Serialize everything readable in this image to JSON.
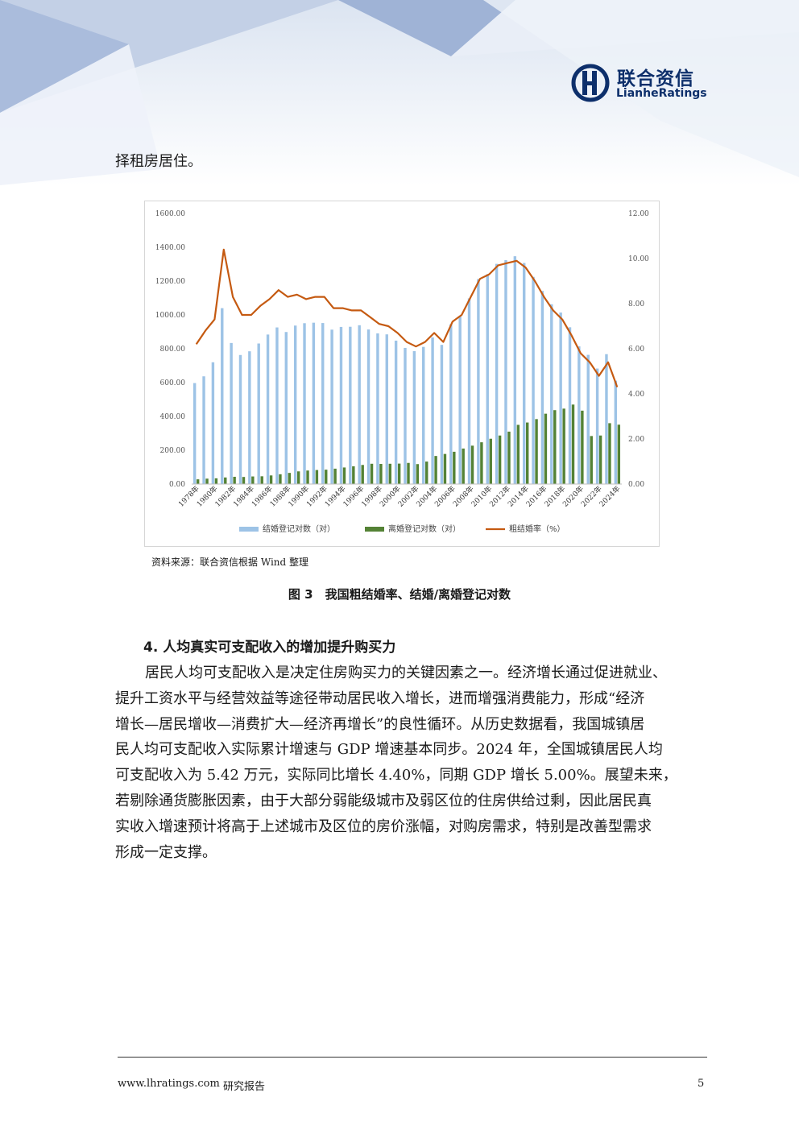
{
  "header": {
    "logo_cn": "联合资信",
    "logo_en": "LianheRatings",
    "colors": {
      "navy": "#0d2f6b",
      "light_blue": "#c9d6ea",
      "pale_blue": "#e4ebf5"
    }
  },
  "lead_text": "择租房居住。",
  "figure": {
    "source": "资料来源：联合资信根据 Wind 整理",
    "caption": "图 3　我国粗结婚率、结婚/离婚登记对数"
  },
  "chart_data": {
    "type": "bar",
    "categories": [
      "1978年",
      "1979年",
      "1980年",
      "1981年",
      "1982年",
      "1983年",
      "1984年",
      "1985年",
      "1986年",
      "1987年",
      "1988年",
      "1989年",
      "1990年",
      "1991年",
      "1992年",
      "1993年",
      "1994年",
      "1995年",
      "1996年",
      "1997年",
      "1998年",
      "1999年",
      "2000年",
      "2001年",
      "2002年",
      "2003年",
      "2004年",
      "2005年",
      "2006年",
      "2007年",
      "2008年",
      "2009年",
      "2010年",
      "2011年",
      "2012年",
      "2013年",
      "2014年",
      "2015年",
      "2016年",
      "2017年",
      "2018年",
      "2019年",
      "2020年",
      "2021年",
      "2022年",
      "2023年",
      "2024年"
    ],
    "tick_labels_shown": [
      "1978年",
      "1980年",
      "1982年",
      "1984年",
      "1986年",
      "1988年",
      "1990年",
      "1992年",
      "1994年",
      "1996年",
      "1998年",
      "2000年",
      "2002年",
      "2004年",
      "2006年",
      "2008年",
      "2010年",
      "2012年",
      "2014年",
      "2016年",
      "2018年",
      "2020年",
      "2022年",
      "2024年"
    ],
    "series": [
      {
        "name": "结婚登记对数（对）",
        "axis": "left",
        "kind": "bar",
        "color": "#9dc3e6",
        "values": [
          597,
          637,
          720,
          1040,
          834,
          763,
          785,
          831,
          884,
          926,
          899,
          937,
          951,
          954,
          952,
          913,
          929,
          930,
          939,
          914,
          891,
          885,
          848,
          805,
          786,
          811,
          867,
          823,
          945,
          991,
          1098,
          1212,
          1241,
          1302,
          1324,
          1347,
          1307,
          1225,
          1142,
          1063,
          1014,
          927,
          814,
          764,
          683,
          768,
          611
        ]
      },
      {
        "name": "离婚登记对数（对）",
        "axis": "left",
        "kind": "bar",
        "color": "#548235",
        "values": [
          28,
          32,
          34,
          39,
          43,
          42,
          45,
          46,
          51,
          58,
          66,
          75,
          80,
          83,
          85,
          91,
          98,
          105,
          113,
          120,
          119,
          120,
          121,
          125,
          118,
          133,
          166,
          178,
          191,
          210,
          227,
          247,
          268,
          287,
          310,
          350,
          364,
          384,
          416,
          437,
          446,
          470,
          434,
          284,
          287,
          360,
          351
        ]
      },
      {
        "name": "粗结婚率（%）",
        "axis": "right",
        "kind": "line",
        "color": "#c55a11",
        "values": [
          6.2,
          6.8,
          7.3,
          10.4,
          8.3,
          7.5,
          7.5,
          7.9,
          8.2,
          8.6,
          8.3,
          8.4,
          8.2,
          8.3,
          8.3,
          7.8,
          7.8,
          7.7,
          7.7,
          7.4,
          7.1,
          7.0,
          6.7,
          6.3,
          6.1,
          6.3,
          6.7,
          6.3,
          7.2,
          7.5,
          8.3,
          9.1,
          9.3,
          9.7,
          9.8,
          9.9,
          9.6,
          9.0,
          8.3,
          7.7,
          7.3,
          6.6,
          5.8,
          5.4,
          4.8,
          5.4,
          4.3
        ]
      }
    ],
    "left_axis": {
      "ylim": [
        0,
        1600
      ],
      "ticks": [
        "0.00",
        "200.00",
        "400.00",
        "600.00",
        "800.00",
        "1000.00",
        "1200.00",
        "1400.00",
        "1600.00"
      ]
    },
    "right_axis": {
      "ylim": [
        0,
        12
      ],
      "ticks": [
        "0.00",
        "2.00",
        "4.00",
        "6.00",
        "8.00",
        "10.00",
        "12.00"
      ]
    },
    "grid": false,
    "legend_position": "bottom"
  },
  "section": {
    "heading": "4. 人均真实可支配收入的增加提升购买力",
    "paragraph_lines": [
      "居民人均可支配收入是决定住房购买力的关键因素之一。经济增长通过促进就业、",
      "提升工资水平与经营效益等途径带动居民收入增长，进而增强消费能力，形成“经济",
      "增长—居民增收—消费扩大—经济再增长”的良性循环。从历史数据看，我国城镇居",
      "民人均可支配收入实际累计增速与 GDP 增速基本同步。2024 年，全国城镇居民人均",
      "可支配收入为 5.42 万元，实际同比增长 4.40%，同期 GDP 增长 5.00%。展望未来，",
      "若剔除通货膨胀因素，由于大部分弱能级城市及弱区位的住房供给过剩，因此居民真",
      "实收入增速预计将高于上述城市及区位的房价涨幅，对购房需求，特别是改善型需求",
      "形成一定支撑。"
    ]
  },
  "footer": {
    "url": "www.lhratings.com",
    "label": "研究报告",
    "page_number": "5"
  }
}
